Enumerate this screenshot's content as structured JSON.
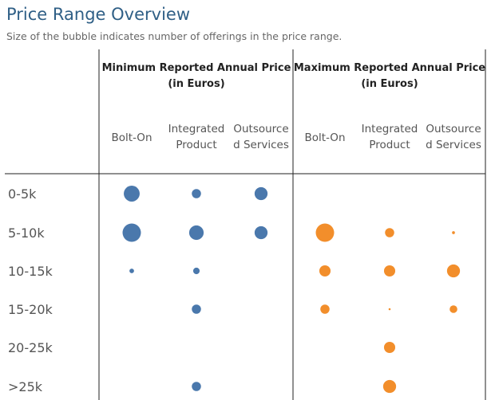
{
  "page": {
    "title": "Price Range Overview",
    "subtitle": "Size of the bubble indicates number of offerings in the price range."
  },
  "chart_data": {
    "type": "scatter",
    "groups": [
      {
        "name_lines": [
          "Minimum Reported Annual Price",
          "(in Euros)"
        ],
        "color": "#4a78ac",
        "columns": [
          {
            "label_lines": [
              "Bolt-On"
            ]
          },
          {
            "label_lines": [
              "Integrated",
              "Product"
            ]
          },
          {
            "label_lines": [
              "Outsource",
              "d Services"
            ]
          }
        ]
      },
      {
        "name_lines": [
          "Maximum Reported Annual Price",
          "(in Euros)"
        ],
        "color": "#f28e2b",
        "columns": [
          {
            "label_lines": [
              "Bolt-On"
            ]
          },
          {
            "label_lines": [
              "Integrated",
              "Product"
            ]
          },
          {
            "label_lines": [
              "Outsource",
              "d Services"
            ]
          }
        ]
      }
    ],
    "rows": [
      "0-5k",
      "5-10k",
      "10-15k",
      "15-20k",
      "20-25k",
      ">25k"
    ],
    "values": [
      [
        3,
        1,
        2,
        0,
        0,
        0
      ],
      [
        4,
        2.5,
        2,
        4,
        1,
        0.1
      ],
      [
        0.25,
        0.5,
        0,
        1.5,
        1.5,
        2
      ],
      [
        0,
        1,
        0,
        1,
        0.05,
        0.7
      ],
      [
        0,
        0,
        0,
        0,
        1.5,
        0
      ],
      [
        0,
        1,
        0,
        0,
        2,
        0
      ]
    ]
  }
}
